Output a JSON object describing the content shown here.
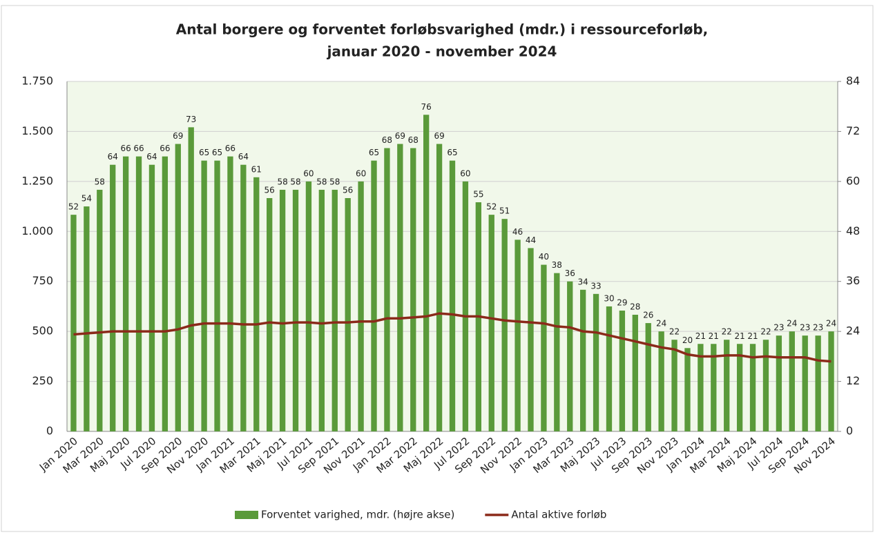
{
  "chart_data": {
    "type": "combo",
    "title": [
      "Antal borgere og forventet forløbsvarighed (mdr.) i ressourceforløb,",
      "januar 2020 - november 2024"
    ],
    "categories": [
      "Jan 2020",
      null,
      "Mar 2020",
      null,
      "Maj 2020",
      null,
      "Jul 2020",
      null,
      "Sep 2020",
      null,
      "Nov 2020",
      null,
      "Jan 2021",
      null,
      "Mar 2021",
      null,
      "Maj 2021",
      null,
      "Jul 2021",
      null,
      "Sep 2021",
      null,
      "Nov 2021",
      null,
      "Jan 2022",
      null,
      "Mar 2022",
      null,
      "Maj 2022",
      null,
      "Jul 2022",
      null,
      "Sep 2022",
      null,
      "Nov 2022",
      null,
      "Jan 2023",
      null,
      "Mar 2023",
      null,
      "Maj 2023",
      null,
      "Jul 2023",
      null,
      "Sep 2023",
      null,
      "Nov 2023",
      null,
      "Jan 2024",
      null,
      "Mar 2024",
      null,
      "Maj 2024",
      null,
      "Jul 2024",
      null,
      "Sep 2024",
      null,
      "Nov 2024"
    ],
    "series": [
      {
        "name": "Forventet varighed, mdr. (højre akse)",
        "type": "bar",
        "axis": "y2",
        "color": "#5a9a3a",
        "values": [
          52,
          54,
          58,
          64,
          66,
          66,
          64,
          66,
          69,
          73,
          65,
          65,
          66,
          64,
          61,
          56,
          58,
          58,
          60,
          58,
          58,
          56,
          60,
          65,
          68,
          69,
          68,
          76,
          69,
          65,
          60,
          55,
          52,
          51,
          46,
          44,
          40,
          38,
          36,
          34,
          33,
          30,
          29,
          28,
          26,
          24,
          22,
          20,
          21,
          21,
          22,
          21,
          21,
          22,
          23,
          24,
          23,
          23,
          24
        ]
      },
      {
        "name": "Antal aktive forløb",
        "type": "line",
        "color": "#8b2a1a",
        "values": [
          485,
          490,
          495,
          500,
          500,
          500,
          500,
          500,
          510,
          530,
          540,
          540,
          540,
          535,
          535,
          545,
          540,
          545,
          545,
          540,
          545,
          545,
          550,
          550,
          565,
          565,
          570,
          575,
          590,
          585,
          575,
          575,
          565,
          555,
          550,
          545,
          540,
          525,
          520,
          500,
          495,
          480,
          465,
          450,
          435,
          420,
          410,
          385,
          375,
          375,
          380,
          380,
          370,
          375,
          370,
          370,
          370,
          355,
          350
        ]
      }
    ],
    "ylim": [
      0,
      1750
    ],
    "yticks": [
      0,
      250,
      500,
      750,
      {
        "value": 1000,
        "label": "1.000"
      },
      {
        "value": 1250,
        "label": "1.250"
      },
      {
        "value": 1500,
        "label": "1.500"
      },
      {
        "value": 1750,
        "label": "1.750"
      }
    ],
    "y2lim": [
      0,
      84
    ],
    "y2ticks": [
      0,
      12,
      24,
      36,
      48,
      60,
      72,
      84
    ],
    "grid": true,
    "legend": "bottom"
  }
}
